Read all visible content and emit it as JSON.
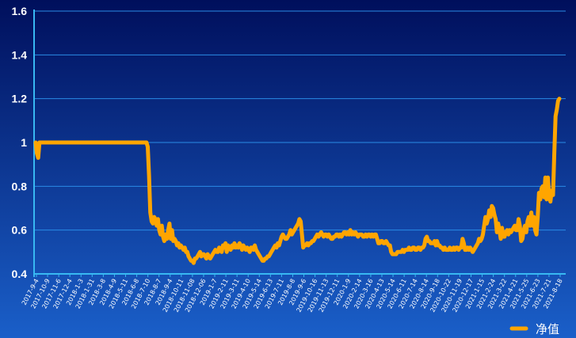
{
  "chart_data": {
    "type": "line",
    "title": "",
    "xlabel": "",
    "ylabel": "",
    "ylim": [
      0.4,
      1.6
    ],
    "y_ticks": [
      "0.4",
      "0.6",
      "0.8",
      "1",
      "1.2",
      "1.4",
      "1.6"
    ],
    "grid": true,
    "legend_position": "bottom-right",
    "colors": {
      "background_top": "#000f5c",
      "background_bottom": "#1a5fc9",
      "grid": "#2a8be6",
      "axis": "#38b8f2",
      "line": "#ffa500"
    },
    "x_tick_labels": [
      "2017-9-4",
      "2017-10-9",
      "2017-11-6",
      "2017-12-4",
      "2018-1-3",
      "2018-1-31",
      "2018-3-8",
      "2018-4-9",
      "2018-5-11",
      "2018-6-8",
      "2018-7-10",
      "2018-8-7",
      "2018-9-4",
      "2018-10-11",
      "2018-11-08",
      "2018-12-06",
      "2019-1-7",
      "2019-2-11",
      "2019-3-11",
      "2019-4-10",
      "2019-5-14",
      "2019-6-13",
      "2019-7-11",
      "2019-8-8",
      "2019-9-6",
      "2019-10-16",
      "2019-11-13",
      "2019-12-11",
      "2020-1-9",
      "2020-2-14",
      "2020-3-16",
      "2020-4-13",
      "2020-5-14",
      "2020-6-11",
      "2020-7-14",
      "2020-8-14",
      "2020-9-18",
      "2020-10-22",
      "2020-11-19",
      "2020-12-17",
      "2021-1-15",
      "2021-2-24",
      "2021-3-22",
      "2021-4-21",
      "2021-5-25",
      "2021-6-23",
      "2021-7-21",
      "2021-8-18"
    ],
    "series": [
      {
        "name": "净值",
        "values": [
          1.0,
          0.95,
          0.93,
          1.0,
          1.0,
          1.0,
          1.0,
          1.0,
          1.0,
          1.0,
          1.0,
          1.0,
          1.0,
          1.0,
          1.0,
          1.0,
          1.0,
          1.0,
          1.0,
          1.0,
          1.0,
          1.0,
          1.0,
          1.0,
          1.0,
          1.0,
          1.0,
          1.0,
          1.0,
          1.0,
          1.0,
          1.0,
          1.0,
          1.0,
          1.0,
          1.0,
          1.0,
          1.0,
          1.0,
          1.0,
          1.0,
          1.0,
          1.0,
          1.0,
          1.0,
          1.0,
          1.0,
          1.0,
          1.0,
          1.0,
          1.0,
          1.0,
          1.0,
          1.0,
          1.0,
          1.0,
          1.0,
          1.0,
          1.0,
          1.0,
          1.0,
          1.0,
          1.0,
          1.0,
          1.0,
          1.0,
          1.0,
          1.0,
          1.0,
          1.0,
          1.0,
          1.0,
          1.0,
          1.0,
          1.0,
          1.0,
          1.0,
          1.0,
          1.0,
          1.0,
          1.0,
          1.0,
          1.0,
          1.0,
          1.0,
          1.0,
          1.0,
          1.0,
          0.98,
          0.85,
          0.68,
          0.64,
          0.63,
          0.66,
          0.65,
          0.62,
          0.65,
          0.6,
          0.58,
          0.62,
          0.57,
          0.55,
          0.58,
          0.56,
          0.6,
          0.63,
          0.56,
          0.6,
          0.55,
          0.56,
          0.55,
          0.53,
          0.54,
          0.52,
          0.53,
          0.52,
          0.51,
          0.52,
          0.5,
          0.5,
          0.48,
          0.47,
          0.46,
          0.46,
          0.45,
          0.47,
          0.47,
          0.48,
          0.49,
          0.5,
          0.48,
          0.49,
          0.49,
          0.48,
          0.47,
          0.49,
          0.48,
          0.47,
          0.48,
          0.49,
          0.5,
          0.51,
          0.5,
          0.5,
          0.52,
          0.51,
          0.5,
          0.53,
          0.52,
          0.54,
          0.5,
          0.53,
          0.52,
          0.51,
          0.53,
          0.52,
          0.54,
          0.52,
          0.53,
          0.52,
          0.54,
          0.53,
          0.51,
          0.53,
          0.52,
          0.51,
          0.52,
          0.51,
          0.5,
          0.52,
          0.52,
          0.51,
          0.53,
          0.51,
          0.5,
          0.49,
          0.48,
          0.47,
          0.46,
          0.46,
          0.47,
          0.47,
          0.48,
          0.48,
          0.49,
          0.5,
          0.51,
          0.52,
          0.53,
          0.52,
          0.54,
          0.53,
          0.55,
          0.57,
          0.58,
          0.57,
          0.56,
          0.56,
          0.57,
          0.58,
          0.6,
          0.58,
          0.59,
          0.6,
          0.61,
          0.62,
          0.63,
          0.65,
          0.64,
          0.58,
          0.52,
          0.53,
          0.53,
          0.54,
          0.53,
          0.54,
          0.54,
          0.55,
          0.55,
          0.56,
          0.57,
          0.58,
          0.57,
          0.58,
          0.59,
          0.58,
          0.57,
          0.58,
          0.58,
          0.57,
          0.58,
          0.57,
          0.56,
          0.56,
          0.57,
          0.57,
          0.58,
          0.58,
          0.57,
          0.58,
          0.57,
          0.58,
          0.59,
          0.59,
          0.58,
          0.59,
          0.58,
          0.6,
          0.58,
          0.59,
          0.58,
          0.59,
          0.58,
          0.57,
          0.58,
          0.58,
          0.58,
          0.57,
          0.57,
          0.58,
          0.57,
          0.58,
          0.58,
          0.57,
          0.58,
          0.57,
          0.58,
          0.58,
          0.56,
          0.54,
          0.54,
          0.55,
          0.55,
          0.54,
          0.54,
          0.55,
          0.54,
          0.53,
          0.53,
          0.5,
          0.49,
          0.49,
          0.49,
          0.49,
          0.5,
          0.5,
          0.5,
          0.5,
          0.51,
          0.5,
          0.51,
          0.51,
          0.51,
          0.52,
          0.51,
          0.51,
          0.52,
          0.52,
          0.51,
          0.51,
          0.52,
          0.52,
          0.51,
          0.52,
          0.52,
          0.53,
          0.56,
          0.57,
          0.55,
          0.55,
          0.54,
          0.54,
          0.54,
          0.55,
          0.53,
          0.55,
          0.53,
          0.53,
          0.52,
          0.52,
          0.51,
          0.52,
          0.51,
          0.51,
          0.51,
          0.52,
          0.51,
          0.51,
          0.52,
          0.51,
          0.52,
          0.52,
          0.51,
          0.52,
          0.52,
          0.56,
          0.54,
          0.51,
          0.51,
          0.52,
          0.51,
          0.52,
          0.51,
          0.5,
          0.51,
          0.52,
          0.53,
          0.54,
          0.56,
          0.55,
          0.56,
          0.58,
          0.62,
          0.66,
          0.63,
          0.65,
          0.69,
          0.66,
          0.71,
          0.7,
          0.67,
          0.65,
          0.59,
          0.63,
          0.6,
          0.56,
          0.61,
          0.57,
          0.57,
          0.59,
          0.6,
          0.58,
          0.6,
          0.59,
          0.6,
          0.61,
          0.62,
          0.6,
          0.6,
          0.65,
          0.62,
          0.55,
          0.56,
          0.6,
          0.62,
          0.59,
          0.64,
          0.66,
          0.62,
          0.68,
          0.62,
          0.66,
          0.6,
          0.58,
          0.66,
          0.77,
          0.74,
          0.79,
          0.8,
          0.75,
          0.84,
          0.74,
          0.84,
          0.76,
          0.73,
          0.78,
          0.76,
          0.95,
          1.12,
          1.15,
          1.19,
          1.2
        ]
      }
    ]
  }
}
